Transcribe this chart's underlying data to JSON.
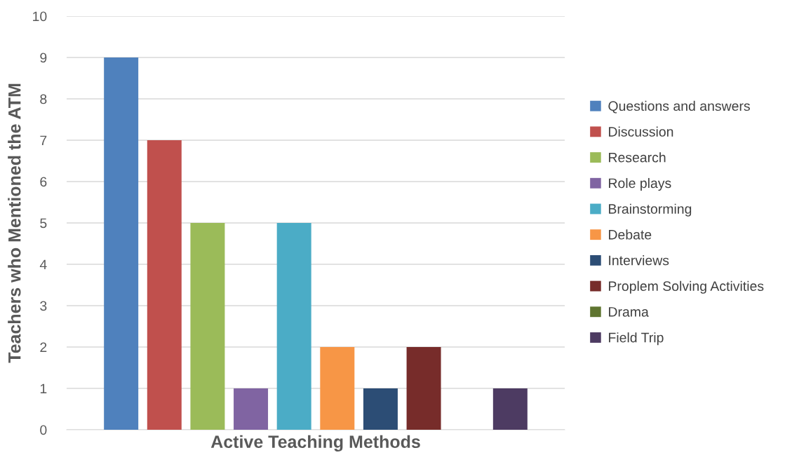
{
  "chart_data": {
    "type": "bar",
    "xlabel": "Active Teaching Methods",
    "ylabel": "Teachers who Mentioned the ATM",
    "categories": [
      null
    ],
    "series": [
      {
        "name": "Questions and answers",
        "color": "#4f81bd",
        "values": [
          9
        ]
      },
      {
        "name": "Discussion",
        "color": "#c0504d",
        "values": [
          7
        ]
      },
      {
        "name": "Research",
        "color": "#9bbb59",
        "values": [
          5
        ]
      },
      {
        "name": "Role plays",
        "color": "#8064a2",
        "values": [
          1
        ]
      },
      {
        "name": "Brainstorming",
        "color": "#4bacc6",
        "values": [
          5
        ]
      },
      {
        "name": "Debate",
        "color": "#f79646",
        "values": [
          2
        ]
      },
      {
        "name": "Interviews",
        "color": "#2c4d75",
        "values": [
          1
        ]
      },
      {
        "name": "Proplem Solving Activities",
        "color": "#772c2a",
        "values": [
          2
        ]
      },
      {
        "name": "Drama",
        "color": "#5f7530",
        "values": [
          0
        ]
      },
      {
        "name": "Field Trip",
        "color": "#4d3b62",
        "values": [
          1
        ]
      }
    ],
    "ylim": [
      0,
      10
    ],
    "yticks": [
      0,
      1,
      2,
      3,
      4,
      5,
      6,
      7,
      8,
      9,
      10
    ],
    "grid": "y",
    "legend": "right"
  }
}
